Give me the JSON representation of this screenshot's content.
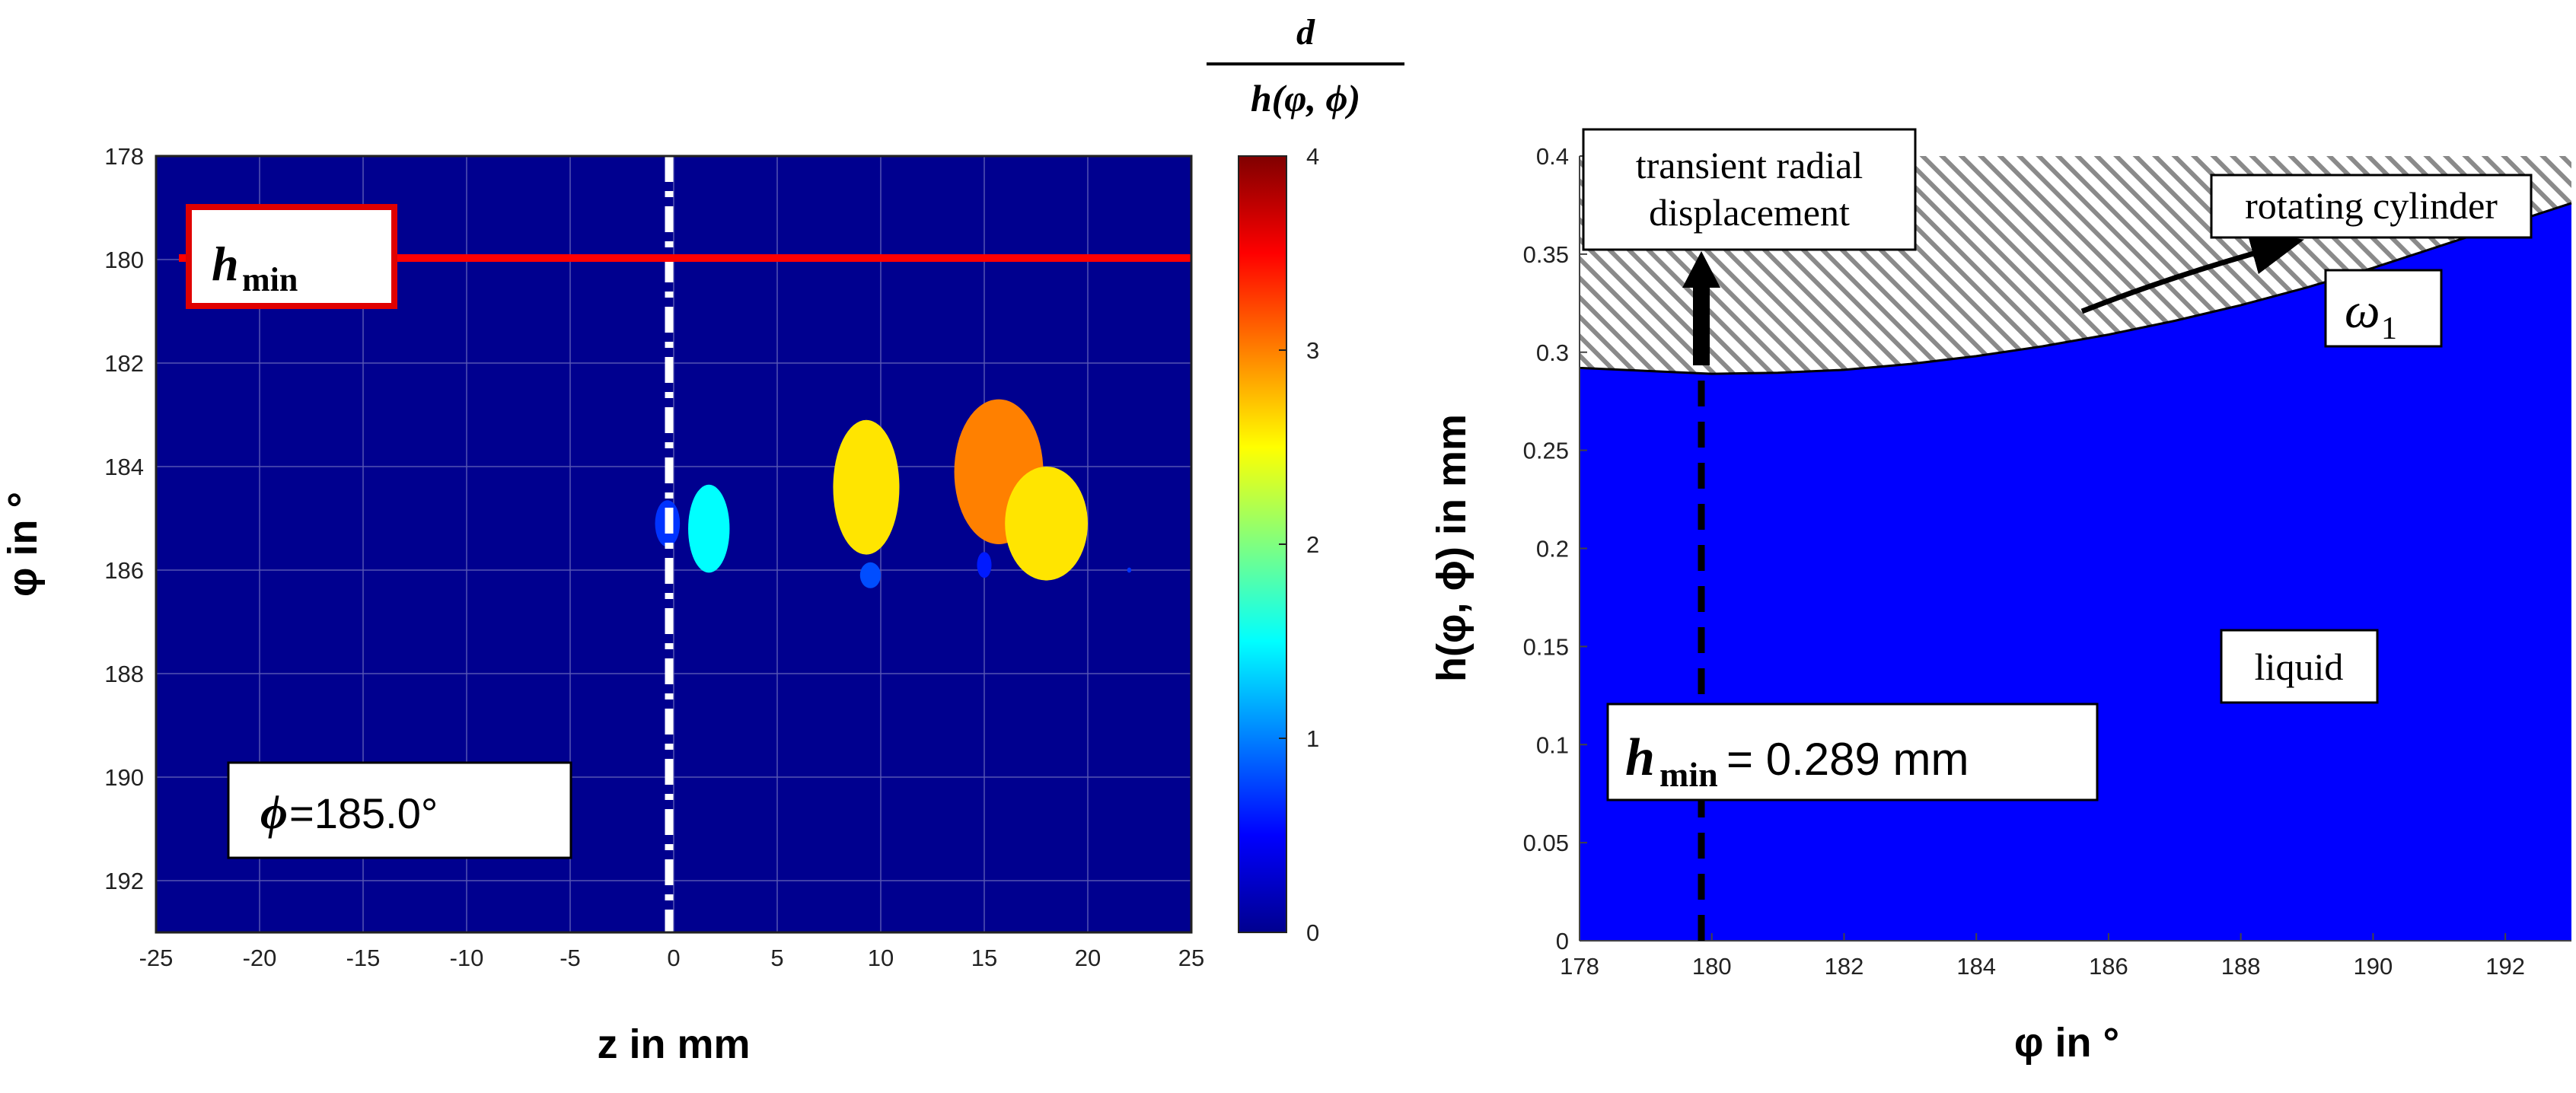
{
  "chart_data": [
    {
      "type": "heatmap",
      "xlabel": "z in mm",
      "ylabel": "φ in °",
      "xlim": [
        -25,
        25
      ],
      "ylim": [
        178,
        193
      ],
      "x_ticks": [
        "-25",
        "-20",
        "-15",
        "-10",
        "-5",
        "0",
        "5",
        "10",
        "15",
        "20",
        "25"
      ],
      "y_ticks": [
        "178",
        "180",
        "182",
        "184",
        "186",
        "188",
        "190",
        "192"
      ],
      "y_reversed": true,
      "grid": true,
      "colorbar": {
        "title_num": "d",
        "title_den": "h(φ, ϕ)",
        "range": [
          0,
          4
        ],
        "ticks": [
          "0",
          "1",
          "2",
          "3",
          "4"
        ],
        "colormap": "jet"
      },
      "hmin_line_at": 180,
      "hmin_label": {
        "main": "h",
        "sub": "min"
      },
      "centerline_z": 0,
      "phi_label": {
        "symbol": "ϕ",
        "value": "=185.0°"
      },
      "droplets": [
        {
          "z": -0.3,
          "phi": 185.1,
          "width_mm": 1.2,
          "height_deg": 0.9,
          "value": 0.7
        },
        {
          "z": 1.7,
          "phi": 185.2,
          "width_mm": 2.0,
          "height_deg": 1.7,
          "value": 1.5
        },
        {
          "z": 9.3,
          "phi": 184.4,
          "width_mm": 3.2,
          "height_deg": 2.6,
          "value": 2.6
        },
        {
          "z": 9.5,
          "phi": 186.1,
          "width_mm": 1.0,
          "height_deg": 0.5,
          "value": 0.8
        },
        {
          "z": 15.7,
          "phi": 184.1,
          "width_mm": 4.3,
          "height_deg": 2.8,
          "value": 3.0
        },
        {
          "z": 18.0,
          "phi": 185.1,
          "width_mm": 4.0,
          "height_deg": 2.2,
          "value": 2.6
        },
        {
          "z": 15.0,
          "phi": 185.9,
          "width_mm": 0.7,
          "height_deg": 0.5,
          "value": 0.6
        },
        {
          "z": 22.0,
          "phi": 186.0,
          "width_mm": 0.2,
          "height_deg": 0.1,
          "value": 0.7
        }
      ],
      "colors": {
        "background": "#00008f",
        "hmin_line": "#ff0000"
      }
    },
    {
      "type": "area",
      "xlabel": "φ in °",
      "ylabel": "h(φ, ϕ) in mm",
      "xlim": [
        178,
        193
      ],
      "ylim": [
        0,
        0.4
      ],
      "x_ticks": [
        "178",
        "180",
        "182",
        "184",
        "186",
        "188",
        "190",
        "192"
      ],
      "y_ticks": [
        "0",
        "0.05",
        "0.1",
        "0.15",
        "0.2",
        "0.25",
        "0.3",
        "0.35",
        "0.4"
      ],
      "x": [
        178,
        179,
        180,
        181,
        182,
        183,
        184,
        185,
        186,
        187,
        188,
        189,
        190,
        191,
        192,
        193
      ],
      "y": [
        0.292,
        0.2905,
        0.289,
        0.2895,
        0.291,
        0.294,
        0.298,
        0.303,
        0.309,
        0.316,
        0.324,
        0.333,
        0.343,
        0.354,
        0.365,
        0.376
      ],
      "cylinder_outer": 0.4,
      "hmin_at": 180,
      "labels": {
        "transient_line1": "transient radial",
        "transient_line2": "displacement",
        "rotating": "rotating cylinder",
        "liquid": "liquid",
        "omega_symbol": "ω",
        "omega_sub": "1",
        "hmin_main": "h",
        "hmin_sub": "min",
        "hmin_value": "= 0.289 mm"
      },
      "colors": {
        "fill": "#0000ff",
        "hatch": "#8a8a8a"
      }
    }
  ]
}
